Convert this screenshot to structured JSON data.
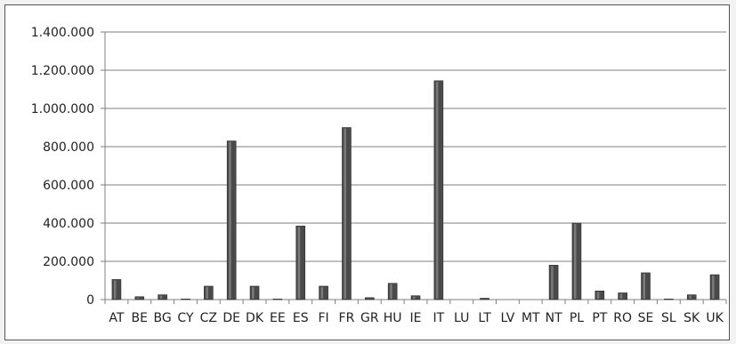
{
  "chart_data": {
    "type": "bar",
    "categories": [
      "AT",
      "BE",
      "BG",
      "CY",
      "CZ",
      "DE",
      "DK",
      "EE",
      "ES",
      "FI",
      "FR",
      "GR",
      "HU",
      "IE",
      "IT",
      "LU",
      "LT",
      "LV",
      "MT",
      "NT",
      "PL",
      "PT",
      "RO",
      "SE",
      "SL",
      "SK",
      "UK"
    ],
    "values": [
      105000,
      15000,
      25000,
      3000,
      70000,
      830000,
      70000,
      3000,
      385000,
      70000,
      900000,
      10000,
      85000,
      20000,
      1145000,
      0,
      7000,
      0,
      0,
      180000,
      400000,
      45000,
      35000,
      140000,
      3000,
      25000,
      130000
    ],
    "yticks": [
      "0",
      "200.000",
      "400.000",
      "600.000",
      "800.000",
      "1.000.000",
      "1.200.000",
      "1.400.000"
    ],
    "ylim": [
      0,
      1400000
    ],
    "grid": true,
    "legend": "none",
    "title": "",
    "xlabel": "",
    "ylabel": "",
    "colors": {
      "bar": "#4a4a4a",
      "grid": "#7f7f7f",
      "axis": "#7f7f7f"
    }
  }
}
